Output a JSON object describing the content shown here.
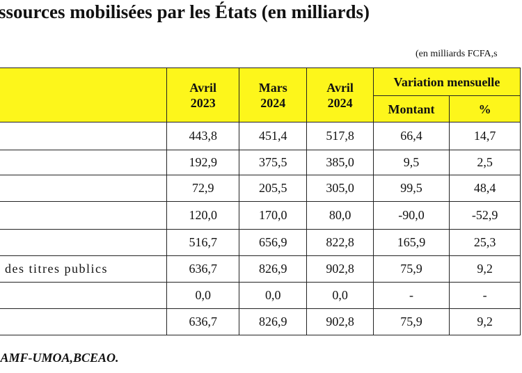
{
  "title": "ssources mobilisées par les États (en milliards)",
  "unit_note": "(en milliards FCFA,s",
  "table": {
    "headers": {
      "col1": "",
      "avril_2023": [
        "Avril",
        "2023"
      ],
      "mars_2024": [
        "Mars",
        "2024"
      ],
      "avril_2024": [
        "Avril",
        "2024"
      ],
      "variation": "Variation mensuelle",
      "montant": "Montant",
      "pct": "%"
    },
    "rows": [
      {
        "label": "",
        "values": [
          "443,8",
          "451,4",
          "517,8",
          "66,4",
          "14,7"
        ]
      },
      {
        "label": "",
        "values": [
          "192,9",
          "375,5",
          "385,0",
          "9,5",
          "2,5"
        ]
      },
      {
        "label": "",
        "values": [
          "72,9",
          "205,5",
          "305,0",
          "99,5",
          "48,4"
        ]
      },
      {
        "label": "",
        "values": [
          "120,0",
          "170,0",
          "80,0",
          "-90,0",
          "-52,9"
        ]
      },
      {
        "label": "",
        "values": [
          "516,7",
          "656,9",
          "822,8",
          "165,9",
          "25,3"
        ]
      },
      {
        "label": "des titres publics",
        "values": [
          "636,7",
          "826,9",
          "902,8",
          "75,9",
          "9,2"
        ]
      },
      {
        "label": "",
        "values": [
          "0,0",
          "0,0",
          "0,0",
          "-",
          "-"
        ]
      },
      {
        "label": "",
        "values": [
          "636,7",
          "826,9",
          "902,8",
          "75,9",
          "9,2"
        ]
      }
    ]
  },
  "source": ",AMF-UMOA,BCEAO."
}
